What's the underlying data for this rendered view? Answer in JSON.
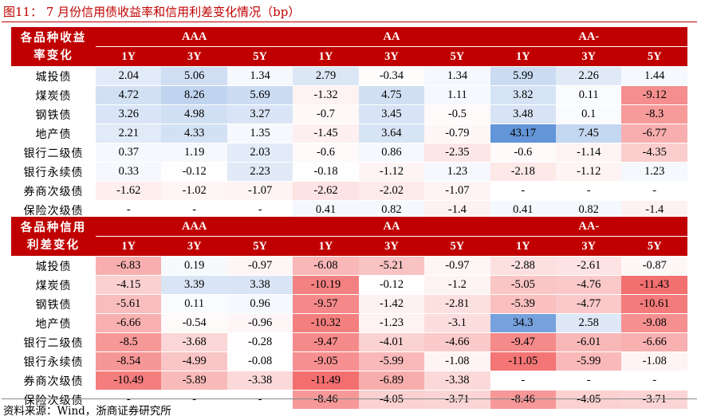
{
  "figure_title": "图11：  7 月份信用债收益率和信用利差变化情况（bp）",
  "source": "资料来源：Wind，浙商证券研究所",
  "ratings": [
    "AAA",
    "AA",
    "AA-"
  ],
  "tenors": [
    "1Y",
    "3Y",
    "5Y",
    "1Y",
    "3Y",
    "5Y",
    "1Y",
    "3Y",
    "5Y"
  ],
  "colors": {
    "header_red": "#c00000",
    "positive_blue": "#5b8fd6",
    "negative_red": "#f04f4f"
  },
  "tables": [
    {
      "header_line1": "各品种收益",
      "header_line2": "率变化",
      "rows": [
        {
          "name": "城投债",
          "values": [
            "2.04",
            "5.06",
            "1.34",
            "2.79",
            "-0.34",
            "1.34",
            "5.99",
            "2.26",
            "1.44"
          ]
        },
        {
          "name": "煤炭债",
          "values": [
            "4.72",
            "8.26",
            "5.69",
            "-1.32",
            "4.75",
            "1.11",
            "3.82",
            "0.11",
            "-9.12"
          ]
        },
        {
          "name": "钢铁债",
          "values": [
            "3.26",
            "4.98",
            "3.27",
            "-0.7",
            "3.45",
            "-0.5",
            "3.48",
            "0.1",
            "-8.3"
          ]
        },
        {
          "name": "地产债",
          "values": [
            "2.21",
            "4.33",
            "1.35",
            "-1.45",
            "3.64",
            "-0.79",
            "43.17",
            "7.45",
            "-6.77"
          ]
        },
        {
          "name": "银行二级债",
          "values": [
            "0.37",
            "1.19",
            "2.03",
            "-0.6",
            "0.86",
            "-2.35",
            "-0.6",
            "-1.14",
            "-4.35"
          ]
        },
        {
          "name": "银行永续债",
          "values": [
            "0.33",
            "-0.12",
            "2.23",
            "-0.18",
            "-1.12",
            "1.23",
            "-2.18",
            "-1.12",
            "1.23"
          ]
        },
        {
          "name": "券商次级债",
          "values": [
            "-1.62",
            "-1.02",
            "-1.07",
            "-2.62",
            "-2.02",
            "-1.07",
            "-",
            "-",
            "-"
          ]
        },
        {
          "name": "保险次级债",
          "values": [
            "-",
            "-",
            "-",
            "0.41",
            "0.82",
            "-1.4",
            "0.41",
            "0.82",
            "-1.4"
          ]
        }
      ]
    },
    {
      "header_line1": "各品种信用",
      "header_line2": "利差变化",
      "rows": [
        {
          "name": "城投债",
          "values": [
            "-6.83",
            "0.19",
            "-0.97",
            "-6.08",
            "-5.21",
            "-0.97",
            "-2.88",
            "-2.61",
            "-0.87"
          ]
        },
        {
          "name": "煤炭债",
          "values": [
            "-4.15",
            "3.39",
            "3.38",
            "-10.19",
            "-0.12",
            "-1.2",
            "-5.05",
            "-4.76",
            "-11.43"
          ]
        },
        {
          "name": "钢铁债",
          "values": [
            "-5.61",
            "0.11",
            "0.96",
            "-9.57",
            "-1.42",
            "-2.81",
            "-5.39",
            "-4.77",
            "-10.61"
          ]
        },
        {
          "name": "地产债",
          "values": [
            "-6.66",
            "-0.54",
            "-0.96",
            "-10.32",
            "-1.23",
            "-3.1",
            "34.3",
            "2.58",
            "-9.08"
          ]
        },
        {
          "name": "银行二级债",
          "values": [
            "-8.5",
            "-3.68",
            "-0.28",
            "-9.47",
            "-4.01",
            "-4.66",
            "-9.47",
            "-6.01",
            "-6.66"
          ]
        },
        {
          "name": "银行永续债",
          "values": [
            "-8.54",
            "-4.99",
            "-0.08",
            "-9.05",
            "-5.99",
            "-1.08",
            "-11.05",
            "-5.99",
            "-1.08"
          ]
        },
        {
          "name": "券商次级债",
          "values": [
            "-10.49",
            "-5.89",
            "-3.38",
            "-11.49",
            "-6.89",
            "-3.38",
            "-",
            "-",
            "-"
          ]
        },
        {
          "name": "保险次级债",
          "values": [
            "-",
            "-",
            "-",
            "-8.46",
            "-4.05",
            "-3.71",
            "-8.46",
            "-4.05",
            "-3.71"
          ]
        }
      ]
    }
  ]
}
